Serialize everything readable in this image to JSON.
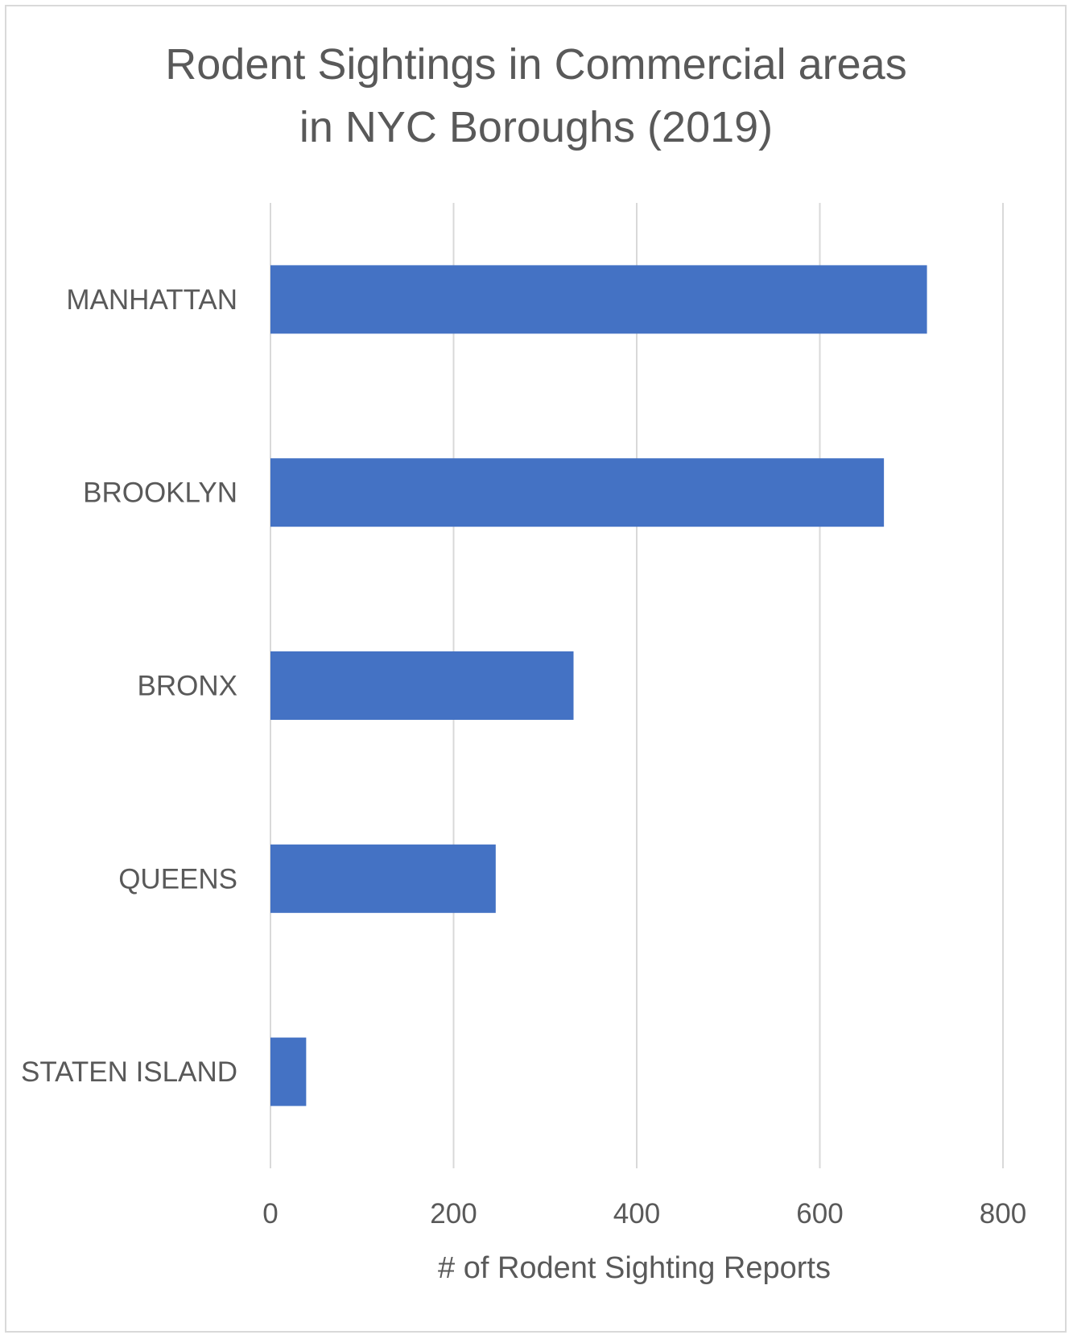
{
  "chart_data": {
    "type": "bar",
    "orientation": "horizontal",
    "title": "Rodent Sightings in Commercial areas in NYC Boroughs (2019)",
    "title_lines": [
      "Rodent Sightings in Commercial areas",
      "in NYC Boroughs (2019)"
    ],
    "categories": [
      "MANHATTAN",
      "BROOKLYN",
      "BRONX",
      "QUEENS",
      "STATEN ISLAND"
    ],
    "values": [
      717,
      670,
      331,
      246,
      39
    ],
    "xlabel": "# of Rodent Sighting Reports",
    "ylabel": "",
    "xlim": [
      0,
      800
    ],
    "xticks": [
      "0",
      "200",
      "400",
      "600",
      "800"
    ],
    "grid": true,
    "legend": "none",
    "colors": {
      "bar": "#4472C4",
      "grid": "#d9d9d9",
      "text": "#595959",
      "border": "#d9d9d9"
    }
  }
}
